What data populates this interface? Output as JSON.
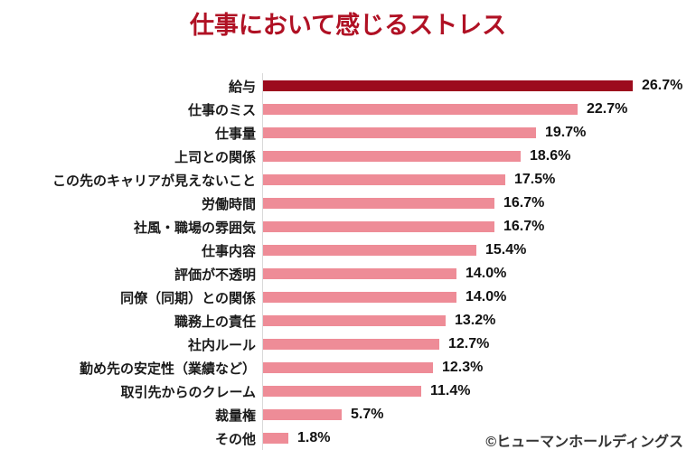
{
  "footer": {
    "copyright": "©ヒューマンホールディングス"
  },
  "chart_data": {
    "type": "bar",
    "orientation": "horizontal",
    "title": "仕事において感じるストレス",
    "categories": [
      "給与",
      "仕事のミス",
      "仕事量",
      "上司との関係",
      "この先のキャリアが見えないこと",
      "労働時間",
      "社風・職場の雰囲気",
      "仕事内容",
      "評価が不透明",
      "同僚（同期）との関係",
      "職務上の責任",
      "社内ルール",
      "勤め先の安定性（業績など）",
      "取引先からのクレーム",
      "裁量権",
      "その他"
    ],
    "values": [
      26.7,
      22.7,
      19.7,
      18.6,
      17.5,
      16.7,
      16.7,
      15.4,
      14.0,
      14.0,
      13.2,
      12.7,
      12.3,
      11.4,
      5.7,
      1.8
    ],
    "value_labels": [
      "26.7%",
      "22.7%",
      "19.7%",
      "18.6%",
      "17.5%",
      "16.7%",
      "16.7%",
      "15.4%",
      "14.0%",
      "14.0%",
      "13.2%",
      "12.7%",
      "12.3%",
      "11.4%",
      "5.7%",
      "1.8%"
    ],
    "xlim": [
      0,
      28
    ],
    "grid": false,
    "legend": false,
    "highlight_index": 0,
    "colors": {
      "highlight_bar": "#9C0B1D",
      "bar": "#EE8C97",
      "title": "#B01124",
      "axis_line": "#D9D9D9",
      "value_text": "#111111",
      "category_text": "#1A1A1A"
    }
  }
}
